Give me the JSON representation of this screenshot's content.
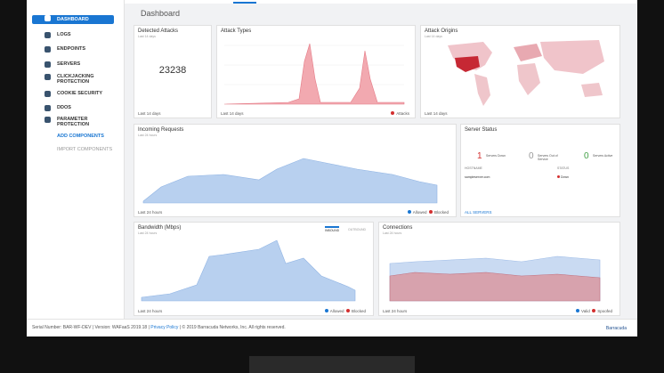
{
  "sidebar": {
    "items": [
      "DASHBOARD",
      "LOGS",
      "ENDPOINTS",
      "SERVERS",
      "CLICKJACKING PROTECTION",
      "COOKIE SECURITY",
      "DDOS",
      "PARAMETER PROTECTION"
    ],
    "actions": [
      "ADD COMPONENTS",
      "IMPORT COMPONENTS"
    ]
  },
  "header": {
    "title": "Dashboard"
  },
  "panels": {
    "detected_attacks": {
      "title": "Detected Attacks",
      "subtitle": "Last 14 days",
      "value": "23238",
      "range": "Last 14 days"
    },
    "attack_types": {
      "title": "Attack Types",
      "range": "Last 14 days",
      "legend": [
        "Attacks"
      ]
    },
    "attack_origins": {
      "title": "Attack Origins",
      "subtitle": "Last 14 days",
      "range": "Last 14 days"
    },
    "incoming_requests": {
      "title": "Incoming Requests",
      "subtitle": "Last 24 hours",
      "range": "Last 24 hours",
      "legend": [
        "Allowed",
        "Blocked"
      ]
    },
    "server_status": {
      "title": "Server Status",
      "stats": [
        {
          "value": "1",
          "label": "Servers Down"
        },
        {
          "value": "0",
          "label": "Servers Out of Service"
        },
        {
          "value": "0",
          "label": "Servers Active"
        }
      ],
      "columns": [
        "HOSTNAME",
        "STATUS"
      ],
      "rows": [
        [
          "sampleserver.com",
          "Down"
        ]
      ],
      "link": "ALL SERVERS"
    },
    "bandwidth": {
      "title": "Bandwidth (Mbps)",
      "subtitle": "Last 24 hours",
      "tabs": [
        "INBOUND",
        "OUTBOUND"
      ],
      "range": "Last 24 hours",
      "legend": [
        "Allowed",
        "Blocked"
      ]
    },
    "connections": {
      "title": "Connections",
      "subtitle": "Last 24 hours",
      "range": "Last 24 hours",
      "legend": [
        "Valid",
        "Spoofed"
      ]
    }
  },
  "footer": {
    "text": "Serial Number: BAR-WF-DEV  |  Version: WAFaaS 2019.18  |",
    "link": "Privacy Policy",
    "rights": "|  © 2019 Barracuda Networks, Inc. All rights reserved.",
    "brand": "Barracuda"
  }
}
